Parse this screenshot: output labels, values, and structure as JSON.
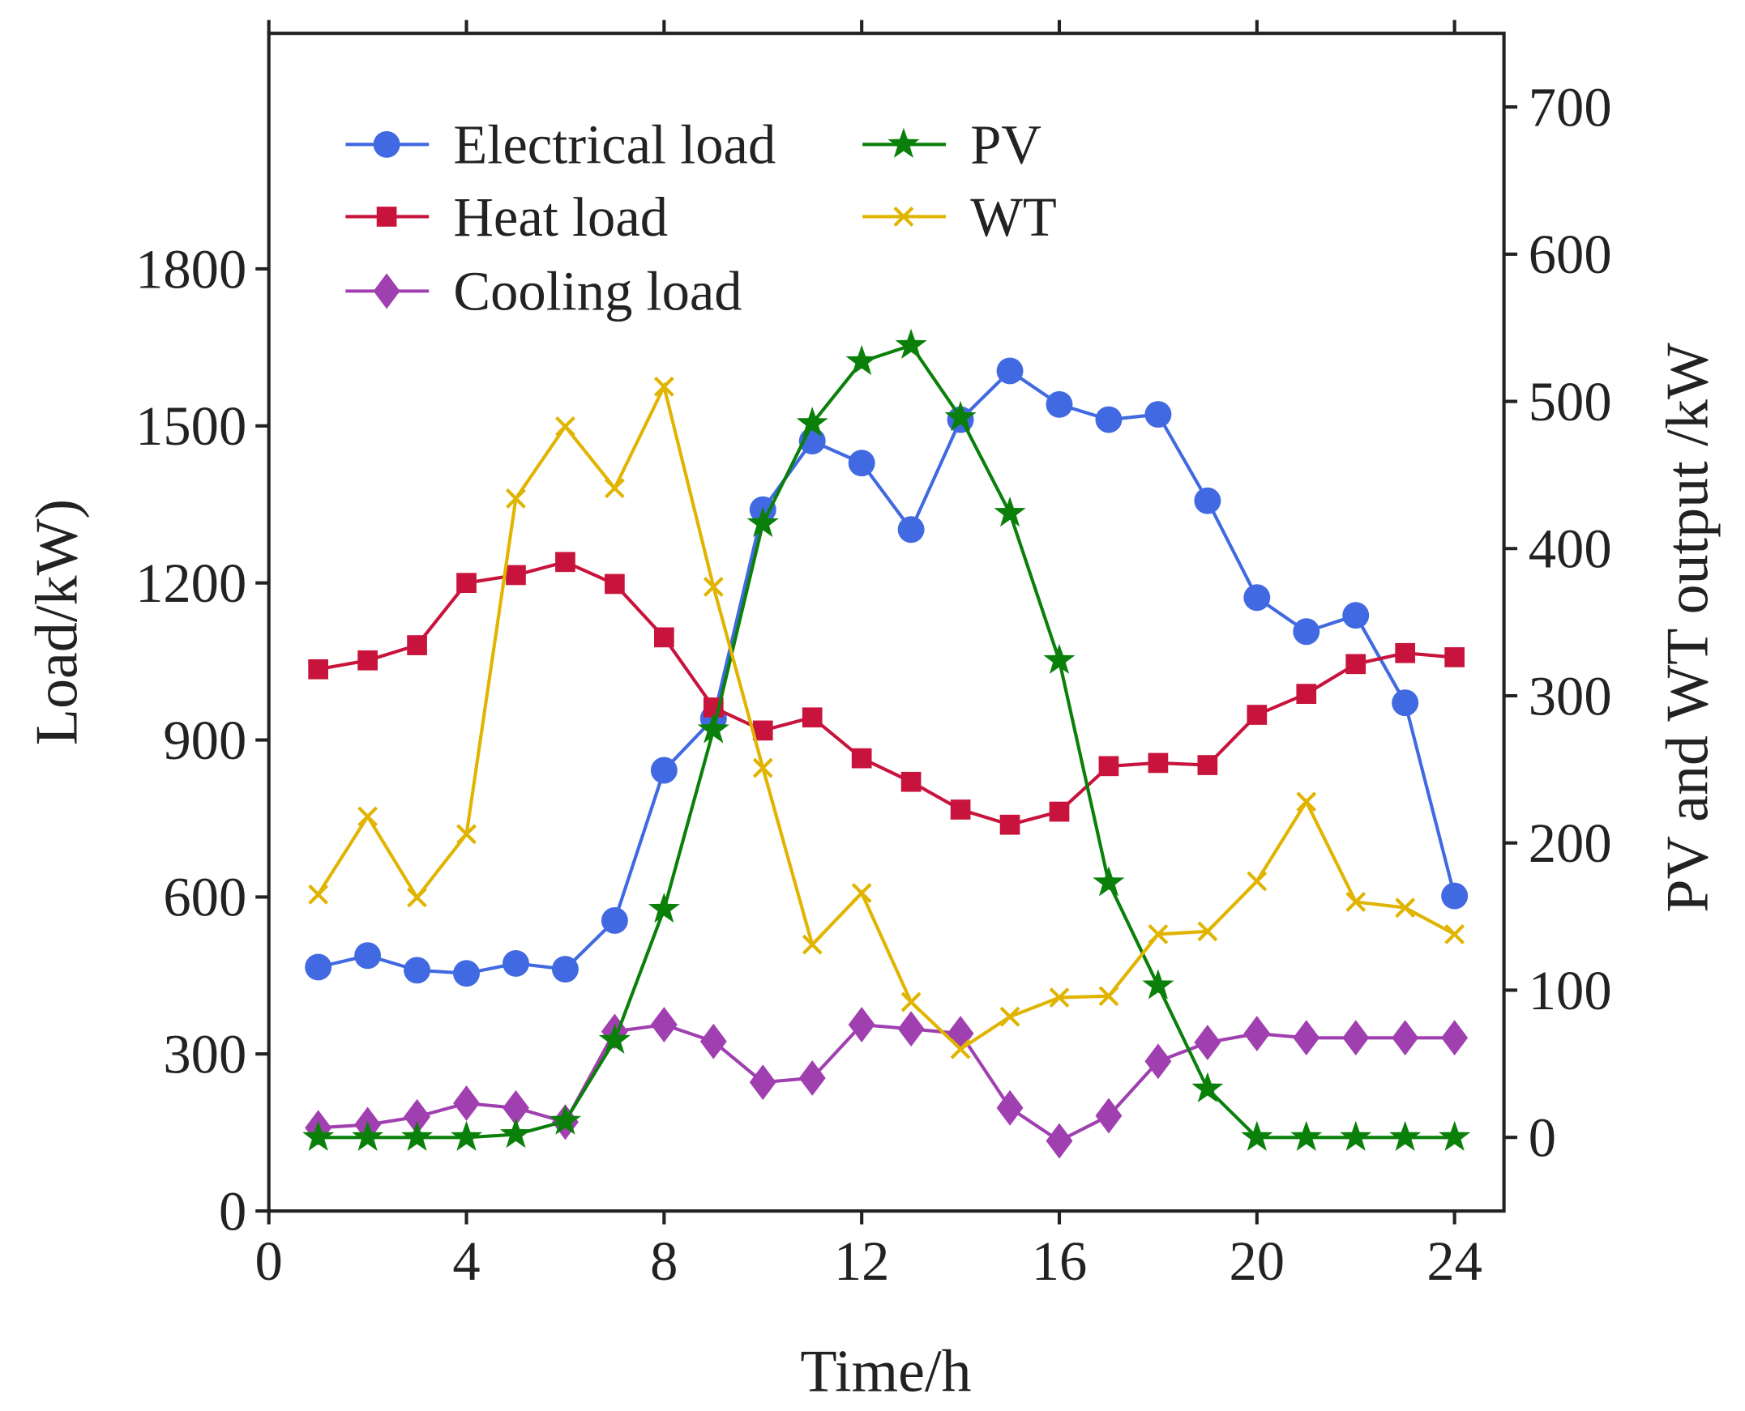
{
  "chart_data": {
    "type": "line",
    "title": "",
    "xlabel": "Time/h",
    "ylabel": "Load/kW)",
    "ylabel_right": "PV and WT output /kW",
    "xlim": [
      0,
      25
    ],
    "ylim": [
      0,
      2250
    ],
    "ylim_right": [
      -50,
      750
    ],
    "xticks": [
      0,
      4,
      8,
      12,
      16,
      20,
      24
    ],
    "yticks": [
      0,
      300,
      600,
      900,
      1200,
      1500,
      1800
    ],
    "yticks_right": [
      0,
      100,
      200,
      300,
      400,
      500,
      600,
      700
    ],
    "grid": false,
    "legend_position": "top-left",
    "x": [
      1,
      2,
      3,
      4,
      5,
      6,
      7,
      8,
      9,
      10,
      11,
      12,
      13,
      14,
      15,
      16,
      17,
      18,
      19,
      20,
      21,
      22,
      23,
      24
    ],
    "series": [
      {
        "name": "Electrical load",
        "axis": "left",
        "color": "#4169e1",
        "marker": "circle",
        "values": [
          466,
          488,
          460,
          454,
          473,
          462,
          555,
          842,
          941,
          1340,
          1471,
          1429,
          1302,
          1512,
          1605,
          1541,
          1512,
          1522,
          1357,
          1172,
          1107,
          1138,
          971,
          602
        ]
      },
      {
        "name": "Heat load",
        "axis": "left",
        "color": "#c8143c",
        "marker": "square",
        "values": [
          1035,
          1052,
          1081,
          1200,
          1215,
          1240,
          1198,
          1096,
          962,
          918,
          943,
          865,
          820,
          767,
          738,
          763,
          850,
          856,
          852,
          948,
          988,
          1045,
          1066,
          1058
        ]
      },
      {
        "name": "Cooling load",
        "axis": "left",
        "color": "#a040b0",
        "marker": "diamond",
        "values": [
          159,
          165,
          180,
          206,
          197,
          170,
          343,
          356,
          324,
          246,
          254,
          356,
          348,
          339,
          197,
          134,
          182,
          286,
          322,
          339,
          331,
          331,
          331,
          331
        ]
      },
      {
        "name": "PV",
        "axis": "right",
        "color": "#0a800a",
        "marker": "star",
        "values": [
          0,
          0,
          0,
          0,
          2,
          11,
          66,
          155,
          277,
          417,
          485,
          527,
          538,
          489,
          424,
          324,
          173,
          103,
          33,
          0,
          0,
          0,
          0,
          0
        ]
      },
      {
        "name": "WT",
        "axis": "right",
        "color": "#e0b400",
        "marker": "x",
        "values": [
          165,
          218,
          163,
          206,
          434,
          483,
          441,
          510,
          374,
          251,
          131,
          166,
          92,
          60,
          82,
          95,
          96,
          138,
          140,
          174,
          228,
          160,
          156,
          138
        ]
      }
    ]
  }
}
